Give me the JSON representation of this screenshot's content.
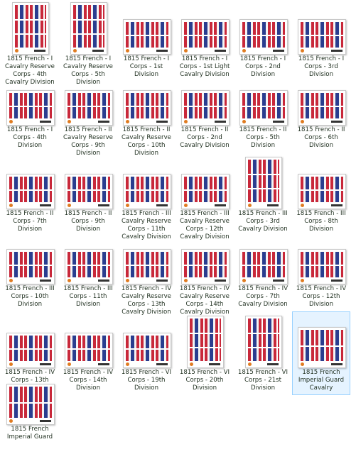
{
  "items": [
    {
      "lines": [
        "1815 French - I",
        "Cavalry Reserve",
        "Corps - 4th",
        "Cavalry Division"
      ],
      "shape": "portrait"
    },
    {
      "lines": [
        "1815 French - I",
        "Cavalry Reserve",
        "Corps - 5th",
        "Division"
      ],
      "shape": "portrait"
    },
    {
      "lines": [
        "1815 French - I",
        "Corps - 1st",
        "Division"
      ],
      "shape": "landscape"
    },
    {
      "lines": [
        "1815 French - I",
        "Corps - 1st Light",
        "Cavalry Division"
      ],
      "shape": "landscape"
    },
    {
      "lines": [
        "1815 French - I",
        "Corps - 2nd",
        "Division"
      ],
      "shape": "landscape"
    },
    {
      "lines": [
        "1815 French - I",
        "Corps - 3rd",
        "Division"
      ],
      "shape": "landscape"
    },
    {
      "lines": [
        "1815 French - I",
        "Corps - 4th",
        "Division"
      ],
      "shape": "landscape"
    },
    {
      "lines": [
        "1815 French - II",
        "Cavalry Reserve",
        "Corps - 9th",
        "Division"
      ],
      "shape": "landscape"
    },
    {
      "lines": [
        "1815 French - II",
        "Cavalry Reserve",
        "Corps - 10th",
        "Division"
      ],
      "shape": "landscape"
    },
    {
      "lines": [
        "1815 French - II",
        "Corps - 2nd",
        "Cavalry Division"
      ],
      "shape": "landscape"
    },
    {
      "lines": [
        "1815 French - II",
        "Corps - 5th",
        "Division"
      ],
      "shape": "landscape"
    },
    {
      "lines": [
        "1815 French - II",
        "Corps - 6th",
        "Division"
      ],
      "shape": "landscape"
    },
    {
      "lines": [
        "1815 French - II",
        "Corps - 7th",
        "Division"
      ],
      "shape": "landscape"
    },
    {
      "lines": [
        "1815 French - II",
        "Corps - 9th",
        "Division"
      ],
      "shape": "landscape"
    },
    {
      "lines": [
        "1815 French - III",
        "Cavalry Reserve",
        "Corps - 11th",
        "Cavalry Division"
      ],
      "shape": "landscape"
    },
    {
      "lines": [
        "1815 French - III",
        "Cavalry Reserve",
        "Corps - 12th",
        "Cavalry Division"
      ],
      "shape": "landscape"
    },
    {
      "lines": [
        "1815 French - III",
        "Corps - 3rd",
        "Cavalry Division"
      ],
      "shape": "portrait"
    },
    {
      "lines": [
        "1815 French - III",
        "Corps - 8th",
        "Division"
      ],
      "shape": "landscape"
    },
    {
      "lines": [
        "1815 French - III",
        "Corps - 10th",
        "Division"
      ],
      "shape": "landscape"
    },
    {
      "lines": [
        "1815 French - III",
        "Corps - 11th",
        "Division"
      ],
      "shape": "landscape"
    },
    {
      "lines": [
        "1815 French - IV",
        "Cavalry Reserve",
        "Corps - 13th",
        "Cavalry Division"
      ],
      "shape": "landscape"
    },
    {
      "lines": [
        "1815 French - IV",
        "Cavalry Reserve",
        "Corps - 14th",
        "Cavalry Division"
      ],
      "shape": "landscape"
    },
    {
      "lines": [
        "1815 French - IV",
        "Corps - 7th",
        "Cavalry Division"
      ],
      "shape": "landscape"
    },
    {
      "lines": [
        "1815 French - IV",
        "Corps - 12th",
        "Division"
      ],
      "shape": "landscape"
    },
    {
      "lines": [
        "1815 French - IV",
        "Corps - 13th",
        "Division"
      ],
      "shape": "landscape"
    },
    {
      "lines": [
        "1815 French - IV",
        "Corps - 14th",
        "Division"
      ],
      "shape": "landscape"
    },
    {
      "lines": [
        "1815 French - VI",
        "Corps - 19th",
        "Division"
      ],
      "shape": "landscape"
    },
    {
      "lines": [
        "1815 French - VI",
        "Corps - 20th",
        "Division"
      ],
      "shape": "portrait"
    },
    {
      "lines": [
        "1815 French - VI",
        "Corps - 21st",
        "Division"
      ],
      "shape": "portrait"
    },
    {
      "lines": [
        "1815 French",
        "Imperial Guard",
        "Cavalry"
      ],
      "shape": "square",
      "selected": true
    },
    {
      "lines": [
        "1815 French",
        "Imperial Guard"
      ],
      "shape": "square"
    }
  ]
}
